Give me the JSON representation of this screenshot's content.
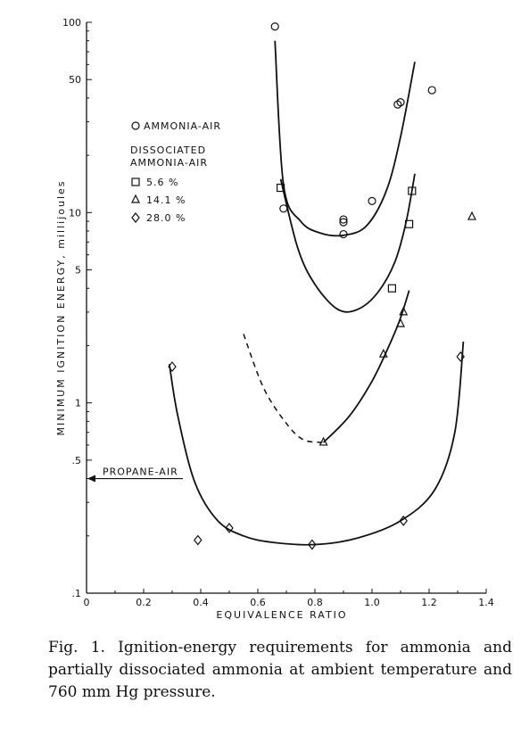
{
  "chart_data": {
    "type": "scatter",
    "xlabel": "EQUIVALENCE RATIO",
    "ylabel": "MINIMUM IGNITION ENERGY, millijoules",
    "xlim": [
      0,
      1.4
    ],
    "ylim": [
      0.1,
      100
    ],
    "yscale": "log",
    "grid": false,
    "legend_position": "top-left",
    "x_ticks": [
      {
        "value": 0,
        "label": "0"
      },
      {
        "value": 0.2,
        "label": "0.2"
      },
      {
        "value": 0.4,
        "label": "0.4"
      },
      {
        "value": 0.6,
        "label": "0.6"
      },
      {
        "value": 0.8,
        "label": "0.8"
      },
      {
        "value": 1.0,
        "label": "1.0"
      },
      {
        "value": 1.2,
        "label": "1.2"
      },
      {
        "value": 1.4,
        "label": "1.4"
      }
    ],
    "y_ticks": [
      {
        "value": 100,
        "label": "100"
      },
      {
        "value": 50,
        "label": "50"
      },
      {
        "value": 10,
        "label": "10"
      },
      {
        "value": 5,
        "label": "5"
      },
      {
        "value": 1,
        "label": "1"
      },
      {
        "value": 0.5,
        "label": ".5"
      },
      {
        "value": 0.1,
        "label": ".1"
      }
    ],
    "legend_title": "DISSOCIATED AMMONIA-AIR",
    "series": [
      {
        "name": "AMMONIA-AIR",
        "marker": "circle",
        "points": [
          [
            0.66,
            95
          ],
          [
            0.69,
            10.5
          ],
          [
            0.9,
            7.7
          ],
          [
            0.9,
            9.2
          ],
          [
            0.9,
            8.9
          ],
          [
            1.0,
            11.5
          ],
          [
            1.09,
            37
          ],
          [
            1.1,
            38
          ],
          [
            1.21,
            44
          ]
        ],
        "curve": [
          [
            0.66,
            80
          ],
          [
            0.69,
            14
          ],
          [
            0.75,
            9.0
          ],
          [
            0.82,
            7.8
          ],
          [
            0.9,
            7.6
          ],
          [
            0.98,
            8.5
          ],
          [
            1.05,
            13
          ],
          [
            1.1,
            25
          ],
          [
            1.15,
            62
          ]
        ]
      },
      {
        "name": "5.6 %",
        "marker": "square",
        "points": [
          [
            0.68,
            13.5
          ],
          [
            1.07,
            4.0
          ],
          [
            1.13,
            8.7
          ],
          [
            1.14,
            13
          ]
        ],
        "curve": [
          [
            0.68,
            15
          ],
          [
            0.74,
            6.5
          ],
          [
            0.8,
            4.2
          ],
          [
            0.88,
            3.1
          ],
          [
            0.95,
            3.1
          ],
          [
            1.02,
            3.8
          ],
          [
            1.08,
            5.5
          ],
          [
            1.12,
            9
          ],
          [
            1.15,
            16
          ]
        ]
      },
      {
        "name": "14.1 %",
        "marker": "triangle",
        "points": [
          [
            0.83,
            0.62
          ],
          [
            1.04,
            1.8
          ],
          [
            1.1,
            2.6
          ],
          [
            1.11,
            3.0
          ],
          [
            1.35,
            9.5
          ]
        ],
        "curve": [
          [
            0.83,
            0.62
          ],
          [
            0.92,
            0.85
          ],
          [
            1.0,
            1.3
          ],
          [
            1.06,
            2.0
          ],
          [
            1.1,
            2.8
          ],
          [
            1.13,
            3.9
          ]
        ],
        "dashed_curve": [
          [
            0.55,
            2.3
          ],
          [
            0.62,
            1.2
          ],
          [
            0.7,
            0.78
          ],
          [
            0.76,
            0.64
          ],
          [
            0.83,
            0.62
          ]
        ]
      },
      {
        "name": "28.0 %",
        "marker": "diamond",
        "points": [
          [
            0.3,
            1.55
          ],
          [
            0.39,
            0.19
          ],
          [
            0.5,
            0.22
          ],
          [
            0.79,
            0.18
          ],
          [
            1.11,
            0.24
          ],
          [
            1.31,
            1.75
          ]
        ],
        "curve": [
          [
            0.29,
            1.6
          ],
          [
            0.32,
            0.85
          ],
          [
            0.38,
            0.38
          ],
          [
            0.46,
            0.24
          ],
          [
            0.55,
            0.2
          ],
          [
            0.65,
            0.185
          ],
          [
            0.8,
            0.18
          ],
          [
            0.95,
            0.195
          ],
          [
            1.1,
            0.24
          ],
          [
            1.22,
            0.35
          ],
          [
            1.29,
            0.7
          ],
          [
            1.32,
            2.1
          ]
        ]
      }
    ],
    "annotations": [
      {
        "text": "PROPANE-AIR",
        "x": 0,
        "y": 0.4
      }
    ]
  },
  "caption": "Fig. 1. Ignition-energy requirements for ammonia and partially dissociated ammonia at ambient temperature and 760 mm Hg pressure."
}
